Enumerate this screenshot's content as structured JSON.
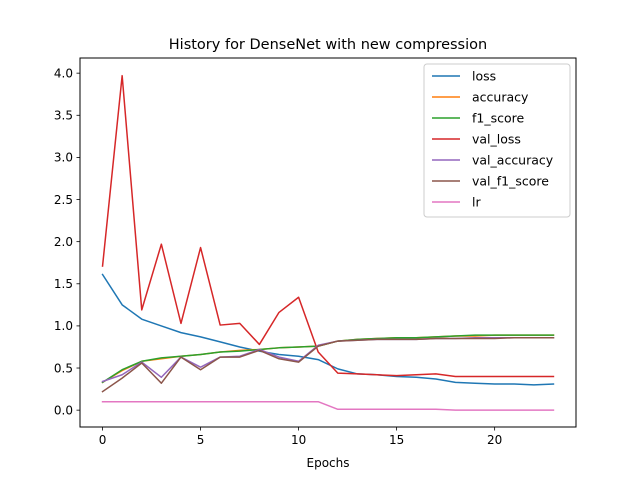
{
  "chart_data": {
    "type": "line",
    "title": "History for DenseNet with new compression",
    "xlabel": "Epochs",
    "ylabel": "",
    "xlim": [
      -1.15,
      24.15
    ],
    "ylim": [
      -0.2,
      4.18
    ],
    "xticks": [
      0,
      5,
      10,
      15,
      20
    ],
    "yticks": [
      0.0,
      0.5,
      1.0,
      1.5,
      2.0,
      2.5,
      3.0,
      3.5,
      4.0
    ],
    "x": [
      0,
      1,
      2,
      3,
      4,
      5,
      6,
      7,
      8,
      9,
      10,
      11,
      12,
      13,
      14,
      15,
      16,
      17,
      18,
      19,
      20,
      21,
      22,
      23
    ],
    "grid": false,
    "legend_position": "top-right",
    "series": [
      {
        "name": "loss",
        "color": "#1f77b4",
        "values": [
          1.61,
          1.25,
          1.08,
          1.0,
          0.92,
          0.87,
          0.81,
          0.75,
          0.7,
          0.66,
          0.64,
          0.6,
          0.49,
          0.43,
          0.42,
          0.4,
          0.39,
          0.37,
          0.33,
          0.32,
          0.31,
          0.31,
          0.3,
          0.31
        ]
      },
      {
        "name": "accuracy",
        "color": "#ff7f0e",
        "values": [
          0.33,
          0.47,
          0.58,
          0.61,
          0.64,
          0.66,
          0.69,
          0.71,
          0.72,
          0.74,
          0.75,
          0.76,
          0.82,
          0.84,
          0.85,
          0.86,
          0.86,
          0.87,
          0.88,
          0.88,
          0.89,
          0.89,
          0.89,
          0.89
        ]
      },
      {
        "name": "f1_score",
        "color": "#2ca02c",
        "values": [
          0.33,
          0.48,
          0.58,
          0.62,
          0.64,
          0.66,
          0.69,
          0.7,
          0.72,
          0.74,
          0.75,
          0.76,
          0.82,
          0.84,
          0.85,
          0.86,
          0.86,
          0.87,
          0.88,
          0.89,
          0.89,
          0.89,
          0.89,
          0.89
        ]
      },
      {
        "name": "val_loss",
        "color": "#d62728",
        "values": [
          1.71,
          3.97,
          1.19,
          1.97,
          1.03,
          1.93,
          1.01,
          1.03,
          0.78,
          1.16,
          1.34,
          0.69,
          0.44,
          0.43,
          0.42,
          0.41,
          0.42,
          0.43,
          0.4,
          0.4,
          0.4,
          0.4,
          0.4,
          0.4
        ]
      },
      {
        "name": "val_accuracy",
        "color": "#9467bd",
        "values": [
          0.34,
          0.42,
          0.57,
          0.39,
          0.63,
          0.51,
          0.63,
          0.64,
          0.72,
          0.63,
          0.58,
          0.77,
          0.82,
          0.83,
          0.84,
          0.84,
          0.84,
          0.85,
          0.85,
          0.86,
          0.86,
          0.86,
          0.86,
          0.86
        ]
      },
      {
        "name": "val_f1_score",
        "color": "#8c564b",
        "values": [
          0.22,
          0.38,
          0.56,
          0.32,
          0.63,
          0.48,
          0.63,
          0.63,
          0.71,
          0.61,
          0.57,
          0.76,
          0.82,
          0.83,
          0.84,
          0.84,
          0.84,
          0.85,
          0.85,
          0.85,
          0.85,
          0.86,
          0.86,
          0.86
        ]
      },
      {
        "name": "lr",
        "color": "#e377c2",
        "values": [
          0.1,
          0.1,
          0.1,
          0.1,
          0.1,
          0.1,
          0.1,
          0.1,
          0.1,
          0.1,
          0.1,
          0.1,
          0.01,
          0.01,
          0.01,
          0.01,
          0.01,
          0.01,
          0.001,
          0.001,
          0.001,
          0.001,
          0.001,
          0.001
        ]
      }
    ]
  }
}
